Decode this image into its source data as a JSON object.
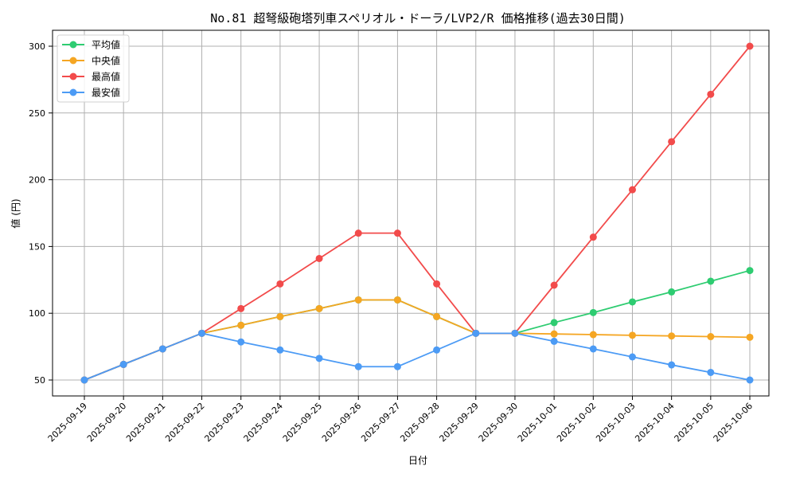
{
  "chart_data": {
    "type": "line",
    "title": "No.81 超弩級砲塔列車スペリオル・ドーラ/LVP2/R 価格推移(過去30日間)",
    "xlabel": "日付",
    "ylabel": "値 (円)",
    "ylim": [
      37,
      312
    ],
    "yticks": [
      50,
      100,
      150,
      200,
      250,
      300
    ],
    "grid": true,
    "legend_position": "upper left",
    "categories": [
      "2025-09-19",
      "2025-09-20",
      "2025-09-21",
      "2025-09-22",
      "2025-09-23",
      "2025-09-24",
      "2025-09-25",
      "2025-09-26",
      "2025-09-27",
      "2025-09-28",
      "2025-09-29",
      "2025-09-30",
      "2025-10-01",
      "2025-10-02",
      "2025-10-03",
      "2025-10-04",
      "2025-10-05",
      "2025-10-06"
    ],
    "series": [
      {
        "name": "平均値",
        "color": "#2ecc71",
        "values": [
          50,
          61.7,
          73.3,
          85,
          91,
          97.5,
          103.5,
          110,
          110,
          97.5,
          85,
          85,
          93,
          100.5,
          108.5,
          116,
          124,
          132
        ]
      },
      {
        "name": "中央値",
        "color": "#f5a623",
        "values": [
          50,
          61.7,
          73.3,
          85,
          91,
          97.5,
          103.5,
          110,
          110,
          97.5,
          85,
          85,
          84.5,
          84,
          83.5,
          83,
          82.5,
          82
        ]
      },
      {
        "name": "最高値",
        "color": "#f24b4b",
        "values": [
          50,
          61.7,
          73.3,
          85,
          103.5,
          122,
          141,
          160,
          160,
          122,
          85,
          85,
          121,
          157,
          192.5,
          228.5,
          264,
          300
        ]
      },
      {
        "name": "最安値",
        "color": "#4c9bf5",
        "values": [
          50,
          61.7,
          73.3,
          85,
          78.5,
          72.5,
          66.2,
          60,
          60,
          72.5,
          85,
          85,
          79,
          73.3,
          67.3,
          61.3,
          55.7,
          50
        ]
      }
    ]
  }
}
